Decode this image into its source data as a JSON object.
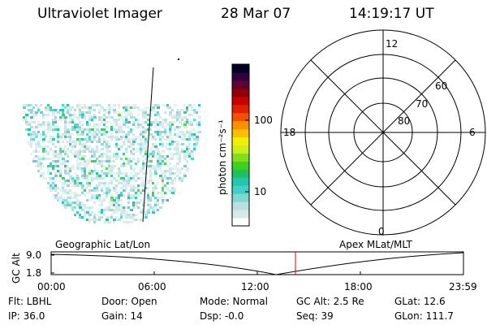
{
  "header": {
    "title": "Ultraviolet Imager",
    "date": "28 Mar 07",
    "time": "14:19:17 UT"
  },
  "colorbar": {
    "label": "photon cm⁻²s⁻¹",
    "ticks": [
      "100",
      "10"
    ],
    "colors": [
      "#ffffff",
      "#d8e8e8",
      "#b8e0e0",
      "#80d8d0",
      "#40d0c8",
      "#20c8b0",
      "#20c060",
      "#40d020",
      "#80e020",
      "#c8f020",
      "#f0f000",
      "#f8c000",
      "#f89000",
      "#f05000",
      "#e02000",
      "#c80000",
      "#900000",
      "#600030",
      "#300040",
      "#000020"
    ]
  },
  "polar": {
    "hour_labels": {
      "top": "12",
      "left": "18",
      "right": "6",
      "bottom": "0"
    },
    "lat_labels": [
      "60",
      "70",
      "80"
    ]
  },
  "strip": {
    "left_label": "Geographic Lat/Lon",
    "right_label": "Apex MLat/MLT",
    "ylabel": "GC Alt",
    "yticks": [
      "9.0",
      "1.8"
    ],
    "xticks": [
      "00:00",
      "06:00",
      "12:00",
      "18:00",
      "23:59"
    ],
    "marker_color": "#e00000"
  },
  "info": {
    "flt": "Flt: LBHL",
    "ip": "IP: 36.0",
    "door": "Door: Open",
    "gain": "Gain: 14",
    "mode": "Mode: Normal",
    "dsp": "Dsp:   -0.0",
    "gcalt": "GC Alt: 2.5 Re",
    "seq": "Seq: 39",
    "glat": "GLat:  12.6",
    "glon": "GLon: 111.7"
  }
}
